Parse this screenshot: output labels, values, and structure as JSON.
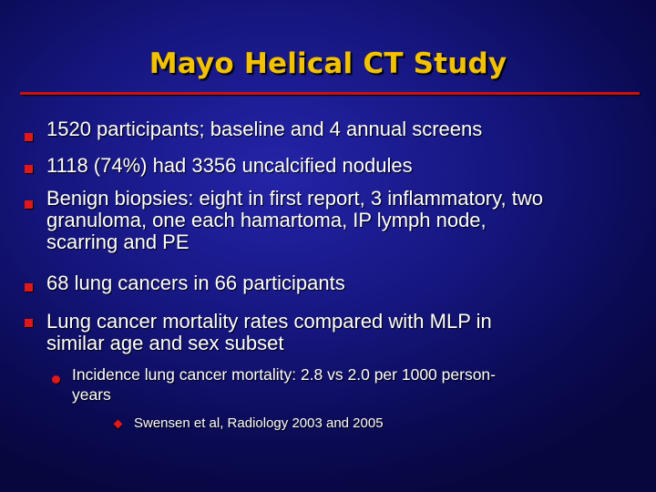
{
  "slide": {
    "title": "Mayo Helical CT Study",
    "colors": {
      "background": "#161680",
      "title": "#f2c200",
      "rule": "#cc1111",
      "bullet": "#e01818",
      "text": "#ffffff"
    },
    "bullets": [
      {
        "lines": [
          "1520 participants; baseline and 4 annual screens"
        ]
      },
      {
        "lines": [
          "1118 (74%) had 3356 uncalcified nodules"
        ]
      },
      {
        "lines": [
          "Benign biopsies: eight in first report, 3 inflammatory, two",
          "granuloma, one each hamartoma, IP lymph node,",
          "scarring and PE"
        ]
      },
      {
        "lines": [
          "68 lung cancers in 66 participants"
        ]
      },
      {
        "lines": [
          "Lung cancer mortality rates compared with MLP in",
          "similar age and sex subset"
        ]
      }
    ],
    "sub_bullet": {
      "lines": [
        "Incidence lung cancer mortality: 2.8 vs 2.0 per 1000 person-",
        "years"
      ]
    },
    "sub_sub_bullet": {
      "lines": [
        "Swensen et al, Radiology 2003 and 2005"
      ]
    }
  }
}
